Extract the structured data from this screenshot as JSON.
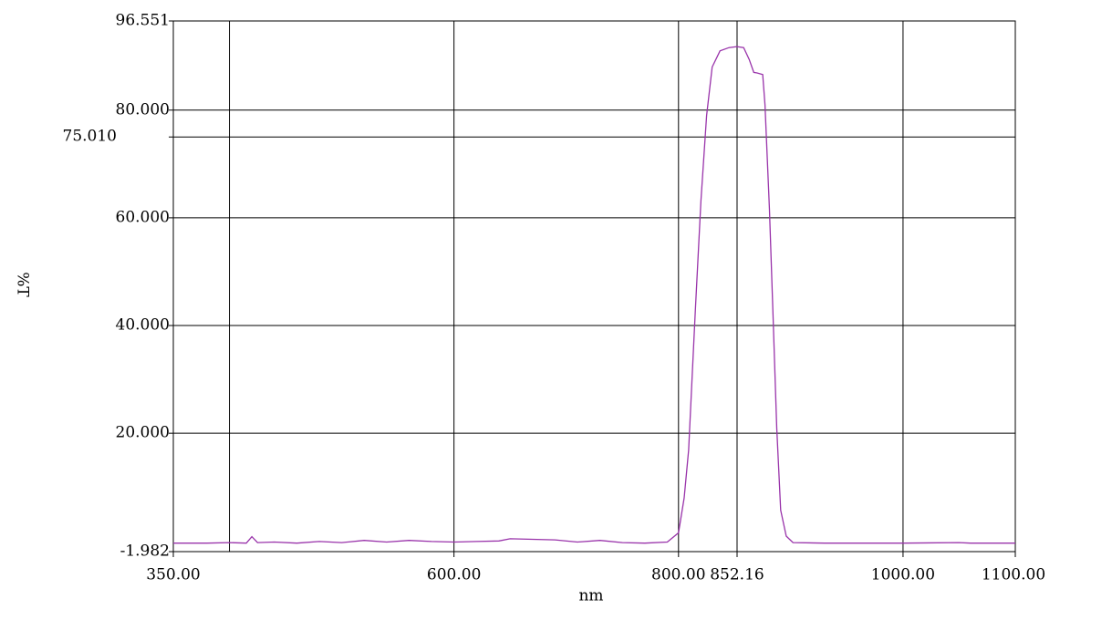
{
  "chart_data": {
    "type": "line",
    "y_label": "%T",
    "x_label": "nm",
    "x": [
      350,
      380,
      400,
      415,
      420,
      425,
      440,
      460,
      480,
      500,
      520,
      540,
      560,
      580,
      600,
      620,
      640,
      650,
      670,
      690,
      710,
      730,
      750,
      770,
      790,
      800,
      805,
      809,
      812,
      815,
      820,
      825,
      830,
      837,
      845,
      852,
      858,
      863,
      867,
      870,
      875,
      877,
      881,
      884,
      887.5,
      891,
      896,
      902,
      930,
      1000,
      1050,
      1060,
      1100
    ],
    "series": [
      {
        "color": "#9933aa",
        "values": [
          -0.4,
          -0.4,
          -0.3,
          -0.4,
          0.8,
          -0.3,
          -0.2,
          -0.4,
          -0.1,
          -0.3,
          0.1,
          -0.2,
          0.1,
          -0.1,
          -0.2,
          -0.1,
          0.0,
          0.4,
          0.3,
          0.2,
          -0.2,
          0.1,
          -0.3,
          -0.4,
          -0.2,
          1.5,
          8,
          16.9,
          30,
          43,
          63.2,
          79,
          88,
          91,
          91.6,
          91.8,
          91.6,
          89.4,
          87,
          86.9,
          86.6,
          81,
          61.5,
          43,
          20.9,
          5.7,
          0.9,
          -0.3,
          -0.4,
          -0.4,
          -0.3,
          -0.4,
          -0.4
        ]
      }
    ],
    "xlim": [
      350,
      1100
    ],
    "xticks": [
      {
        "value": 350,
        "label": "350.00"
      },
      {
        "value": 600,
        "label": "600.00"
      },
      {
        "value": 800,
        "label": "800.00"
      },
      {
        "value": 852.16,
        "label": "852.16"
      },
      {
        "value": 1000,
        "label": "1000.00"
      },
      {
        "value": 1100,
        "label": "1100.00"
      }
    ],
    "xgrid": [
      400,
      600,
      800,
      852.16,
      1000
    ],
    "ylim": [
      -1.982,
      96.551
    ],
    "yticks": [
      {
        "value": -1.982,
        "label": "-1.982"
      },
      {
        "value": 20,
        "label": "20.000"
      },
      {
        "value": 40,
        "label": "40.000"
      },
      {
        "value": 60,
        "label": "60.000"
      },
      {
        "value": 75.01,
        "label": "75.010"
      },
      {
        "value": 80,
        "label": "80.000"
      },
      {
        "value": 96.551,
        "label": "96.551"
      }
    ],
    "grid": true
  }
}
